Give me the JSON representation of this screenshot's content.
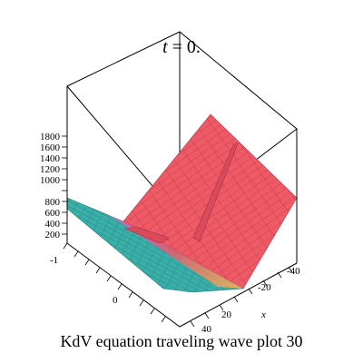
{
  "chart_data": {
    "type": "surface",
    "title_var": "t",
    "title_eq": " = 0.",
    "caption": "KdV equation  traveling wave plot 30",
    "xlabel": "x",
    "z_ticks": [
      "1800",
      "1600",
      "1400",
      "1200",
      "1000",
      "800",
      "600",
      "400",
      "200"
    ],
    "x_ticks": [
      "-40",
      "-20",
      "20",
      "40"
    ],
    "y_ticks": [
      "-1",
      "0"
    ],
    "zlim": [
      0,
      1800
    ],
    "grid": false,
    "colors": {
      "surface_high": "#ee5a66",
      "surface_mid": "#e85a6e",
      "surface_low": "#3aaea8",
      "surface_dark": "#1f7d78",
      "transition": "#b872c8",
      "highlight": "#f3b45a"
    }
  }
}
